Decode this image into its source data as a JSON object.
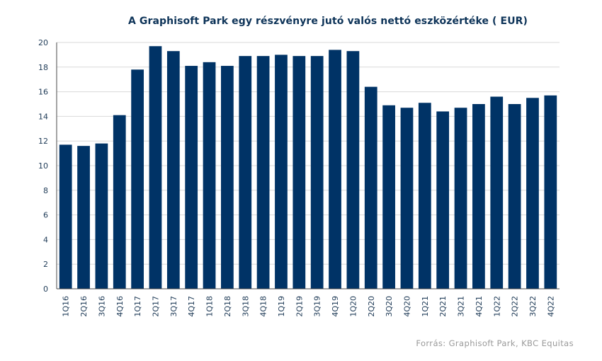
{
  "chart_data": {
    "type": "bar",
    "title": "A Graphisoft Park egy részvényre jutó valós nettó eszközértéke ( EUR)",
    "categories": [
      "1Q16",
      "2Q16",
      "3Q16",
      "4Q16",
      "1Q17",
      "2Q17",
      "3Q17",
      "4Q17",
      "1Q18",
      "2Q18",
      "3Q18",
      "4Q18",
      "1Q19",
      "2Q19",
      "3Q19",
      "4Q19",
      "1Q20",
      "2Q20",
      "3Q20",
      "4Q20",
      "1Q21",
      "2Q21",
      "3Q21",
      "4Q21",
      "1Q22",
      "2Q22",
      "3Q22",
      "4Q22"
    ],
    "values": [
      11.7,
      11.6,
      11.8,
      14.1,
      17.8,
      19.7,
      19.3,
      18.1,
      18.4,
      18.1,
      18.9,
      18.9,
      19.0,
      18.9,
      18.9,
      19.4,
      19.3,
      16.4,
      14.9,
      14.7,
      15.1,
      14.4,
      14.7,
      15.0,
      15.6,
      15.0,
      15.5,
      15.7
    ],
    "ylim": [
      0,
      20
    ],
    "yticks": [
      0,
      2,
      4,
      6,
      8,
      10,
      12,
      14,
      16,
      18,
      20
    ],
    "grid": true,
    "bar_color": "#003366",
    "grid_color": "#d9d9d9",
    "axis_color": "#4a4a4a"
  },
  "source": "Forrás: Graphisoft Park, KBC Equitas"
}
